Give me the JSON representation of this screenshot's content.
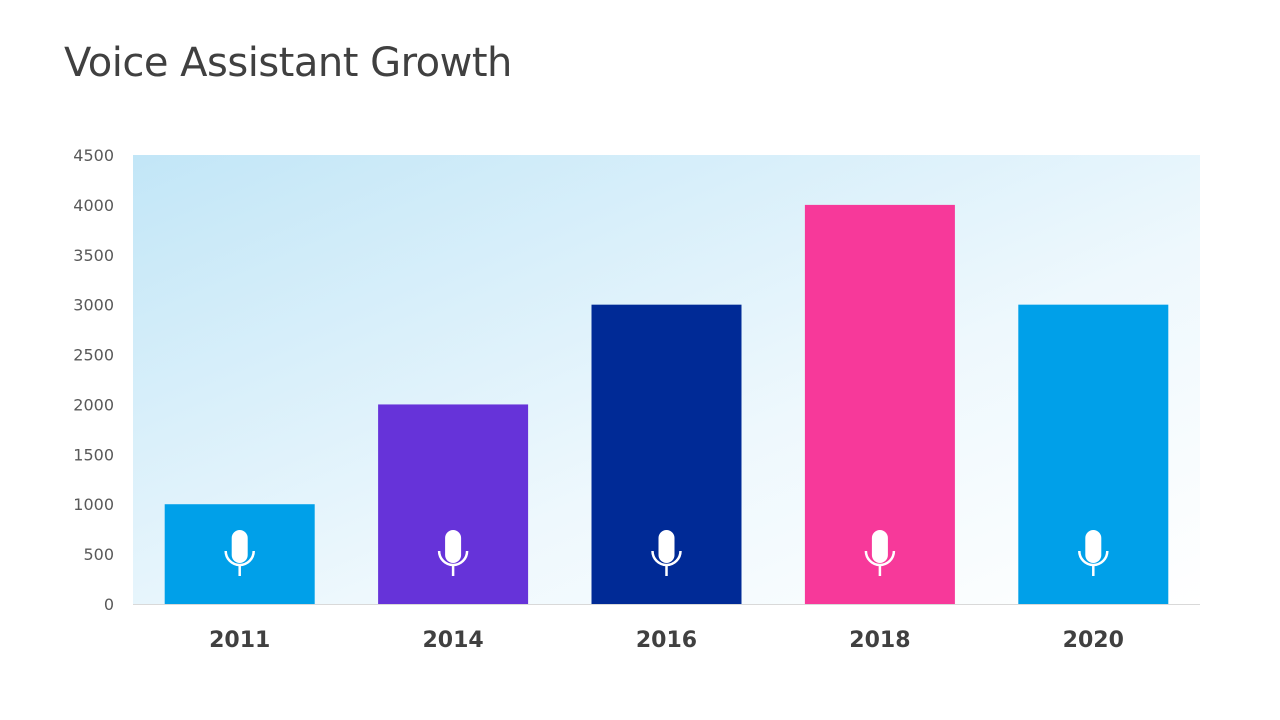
{
  "chart_data": {
    "type": "bar",
    "title": "Voice Assistant Growth",
    "categories": [
      "2011",
      "2014",
      "2016",
      "2018",
      "2020"
    ],
    "values": [
      1000,
      2000,
      3000,
      4000,
      3000
    ],
    "colors": [
      "#00A0E9",
      "#6633D9",
      "#002A96",
      "#F7399A",
      "#00A0E9"
    ],
    "bar_icon": "microphone-icon",
    "xlabel": "",
    "ylabel": "",
    "ylim": [
      0,
      4500
    ],
    "yticks": [
      0,
      500,
      1000,
      1500,
      2000,
      2500,
      3000,
      3500,
      4000,
      4500
    ],
    "grid": false,
    "legend": "none",
    "plot_background": "gradient light blue to white"
  }
}
